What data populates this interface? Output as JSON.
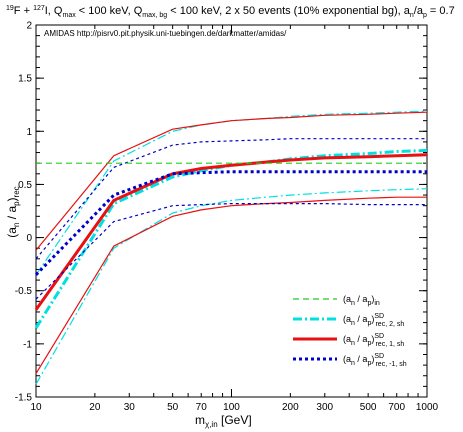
{
  "chart_data": {
    "type": "line",
    "title_parts": {
      "a": "19",
      "b": "F + ",
      "c": "127",
      "d": "I, Q",
      "e": "max",
      "f": " < 100 keV, Q",
      "g": "max, bg",
      "h": " < 100 keV, 2 x 50 events (10% exponential bg), a",
      "i": "n",
      "j": "/a",
      "k": "p",
      "l": " = 0.7"
    },
    "annotation": "AMIDAS   http://pisrv0.pit.physik.uni-tuebingen.de/darkmatter/amidas/",
    "xlabel_parts": {
      "main": "m",
      "sub": "χ,in",
      "rest": " [GeV]"
    },
    "ylabel_parts": {
      "a": "(a",
      "b": "n",
      "c": " / a",
      "d": "p",
      "e": ")",
      "f": "rec"
    },
    "x_scale": "log",
    "xlim": [
      10,
      1000
    ],
    "ylim": [
      -1.5,
      2
    ],
    "x_ticks": [
      10,
      20,
      30,
      50,
      70,
      100,
      200,
      300,
      500,
      700,
      1000
    ],
    "x_tick_labels": [
      "10",
      "20",
      "30",
      "50",
      "70",
      "100",
      "200",
      "300",
      "500",
      "700",
      "1000"
    ],
    "y_ticks": [
      -1.5,
      -1,
      -0.5,
      0,
      0.5,
      1,
      1.5,
      2
    ],
    "y_tick_labels": [
      "-1.5",
      "-1",
      "-0.5",
      "0",
      "0.5",
      "1",
      "1.5",
      "2"
    ],
    "x": [
      10,
      25,
      50,
      70,
      100,
      150,
      200,
      300,
      500,
      700,
      1000
    ],
    "series": [
      {
        "key": "input",
        "style": "dashed-green",
        "color": "#22cc22",
        "lines": [
          [
            0.7,
            0.7,
            0.7,
            0.7,
            0.7,
            0.7,
            0.7,
            0.7,
            0.7,
            0.7,
            0.7
          ]
        ]
      },
      {
        "key": "rec2",
        "style": "dashdot-cyan",
        "color": "#00e0e0",
        "lines": [
          [
            -0.85,
            0.32,
            0.57,
            0.63,
            0.68,
            0.71,
            0.74,
            0.77,
            0.79,
            0.81,
            0.82
          ],
          [
            -1.38,
            -0.1,
            0.23,
            0.3,
            0.35,
            0.38,
            0.4,
            0.42,
            0.44,
            0.45,
            0.46
          ],
          [
            -0.35,
            0.72,
            1.0,
            1.06,
            1.1,
            1.12,
            1.14,
            1.16,
            1.17,
            1.18,
            1.19
          ]
        ]
      },
      {
        "key": "rec1",
        "style": "solid-red",
        "color": "#e81010",
        "lines": [
          [
            -0.68,
            0.35,
            0.6,
            0.65,
            0.68,
            0.71,
            0.73,
            0.75,
            0.76,
            0.77,
            0.78
          ],
          [
            -1.28,
            -0.08,
            0.2,
            0.26,
            0.3,
            0.32,
            0.33,
            0.35,
            0.37,
            0.38,
            0.38
          ],
          [
            -0.12,
            0.77,
            1.02,
            1.06,
            1.1,
            1.12,
            1.13,
            1.15,
            1.16,
            1.17,
            1.18
          ]
        ]
      },
      {
        "key": "recm1",
        "style": "dotted-blue",
        "color": "#0000cc",
        "lines": [
          [
            -0.35,
            0.4,
            0.6,
            0.61,
            0.62,
            0.62,
            0.62,
            0.62,
            0.62,
            0.62,
            0.62
          ],
          [
            -0.58,
            0.15,
            0.3,
            0.31,
            0.32,
            0.32,
            0.32,
            0.32,
            0.31,
            0.31,
            0.31
          ],
          [
            -0.2,
            0.66,
            0.87,
            0.9,
            0.91,
            0.92,
            0.93,
            0.93,
            0.93,
            0.93,
            0.93
          ]
        ]
      }
    ],
    "legend": {
      "placement": "bottom-right",
      "entries": [
        {
          "key": "input",
          "a": "(a",
          "b": "n",
          "c": " / a",
          "d": "p",
          "e": ")",
          "sub": "in",
          "sup": ""
        },
        {
          "key": "rec2",
          "a": "(a",
          "b": "n",
          "c": " / a",
          "d": "p",
          "e": ")",
          "sub": "rec, 2, sh",
          "sup": "SD"
        },
        {
          "key": "rec1",
          "a": "(a",
          "b": "n",
          "c": " / a",
          "d": "p",
          "e": ")",
          "sub": "rec, 1, sh",
          "sup": "SD"
        },
        {
          "key": "recm1",
          "a": "(a",
          "b": "n",
          "c": " / a",
          "d": "p",
          "e": ")",
          "sub": "rec, -1, sh",
          "sup": "SD"
        }
      ]
    },
    "grid": false
  }
}
